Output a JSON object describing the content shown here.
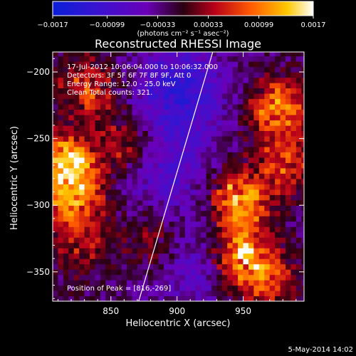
{
  "chart_data": {
    "type": "heatmap",
    "title": "Reconstructed RHESSI Image",
    "xlabel": "Heliocentric X (arcsec)",
    "ylabel": "Heliocentric Y (arcsec)",
    "xlim": [
      806,
      996
    ],
    "ylim": [
      -372,
      -185
    ],
    "x_ticks": [
      850,
      900,
      950
    ],
    "x_tick_labels": [
      "850",
      "900",
      "950"
    ],
    "y_ticks": [
      -200,
      -250,
      -300,
      -350
    ],
    "y_tick_labels": [
      "−200",
      "−250",
      "−300",
      "−350"
    ],
    "colorbar": {
      "range": [
        -0.0017,
        0.0017
      ],
      "ticks": [
        -0.0017,
        -0.00099,
        -0.00033,
        0.00033,
        0.00099,
        0.0017
      ],
      "tick_labels": [
        "−0.0017",
        "−0.00099",
        "−0.00033",
        "0.00033",
        "0.00099",
        "0.0017"
      ],
      "unit_label": "(photons cm⁻² s⁻¹ asec⁻²)",
      "colors": [
        "#0a1fd8",
        "#6a00b8",
        "#2a0010",
        "#b8001a",
        "#ff5a00",
        "#ffc800",
        "#ffffff"
      ]
    },
    "annotations": [
      "17-Jul-2012 10:06:04.000 to 10:06:32.000",
      "Detectors: 3F 5F 6F 7F 8F 9F, Att 0",
      "Energy Range: 12.0 - 25.0 keV",
      "Clean    Total counts: 321."
    ],
    "peak_label": "Position of Peak = [816,-269]",
    "peak": [
      816,
      -269
    ],
    "limb_line": [
      [
        871,
        -372
      ],
      [
        927,
        -185
      ]
    ],
    "sources": [
      {
        "x": 816,
        "y": -269,
        "amp": 1.0
      },
      {
        "x": 820,
        "y": -298,
        "amp": 0.75
      },
      {
        "x": 830,
        "y": -215,
        "amp": 0.55
      },
      {
        "x": 826,
        "y": -330,
        "amp": 0.35
      },
      {
        "x": 945,
        "y": -298,
        "amp": 0.95
      },
      {
        "x": 948,
        "y": -340,
        "amp": 0.9
      },
      {
        "x": 975,
        "y": -230,
        "amp": 0.8
      },
      {
        "x": 980,
        "y": -270,
        "amp": 0.55
      },
      {
        "x": 965,
        "y": -360,
        "amp": 0.5
      },
      {
        "x": 860,
        "y": -255,
        "amp": 0.45
      },
      {
        "x": 880,
        "y": -330,
        "amp": 0.35
      }
    ],
    "dark_regions": [
      {
        "x": 900,
        "y": -215,
        "amp": 0.9
      },
      {
        "x": 892,
        "y": -275,
        "amp": 0.55
      },
      {
        "x": 910,
        "y": -350,
        "amp": 0.45
      }
    ]
  },
  "footer": {
    "date": "5-May-2014 14:02"
  }
}
